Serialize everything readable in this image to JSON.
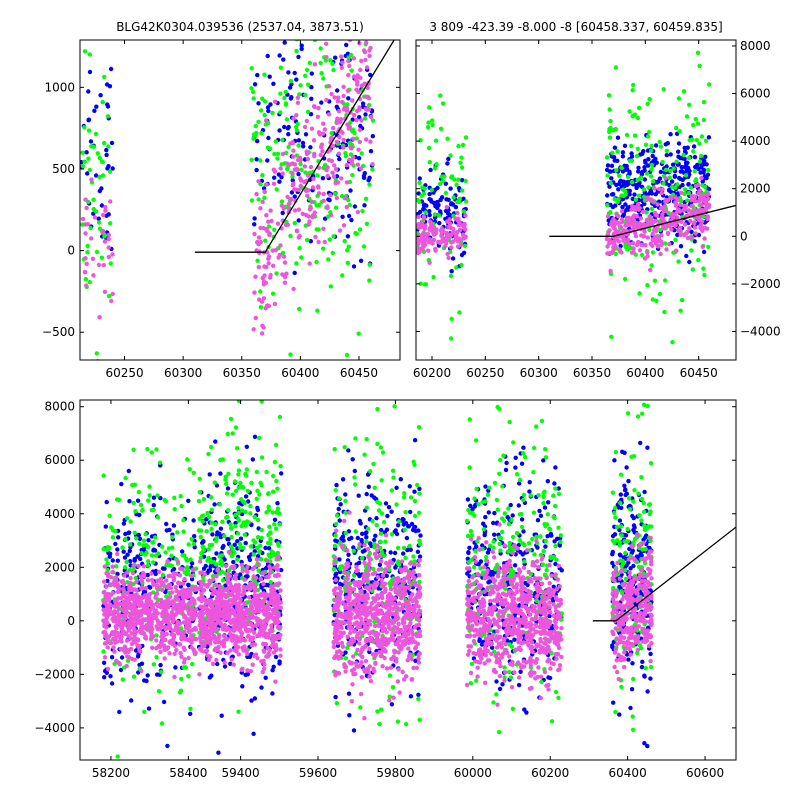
{
  "colors": {
    "blue": "#0000ff",
    "green": "#00ff00",
    "pink": "#ee55dd",
    "model_line": "#000000",
    "frame": "#000000",
    "background": "#ffffff"
  },
  "chart_data": [
    {
      "type": "scatter",
      "title": "BLG42K0304.039536 (2537.04, 3873.51)",
      "xlabel": "",
      "ylabel": "",
      "xlim": [
        60212,
        60485
      ],
      "ylim": [
        -670,
        1290
      ],
      "xticks": [
        60250,
        60300,
        60350,
        60400,
        60450
      ],
      "xtick_labels": [
        "60250",
        "60300",
        "60350",
        "60400",
        "60450"
      ],
      "yticks": [
        -500,
        0,
        500,
        1000
      ],
      "ytick_labels": [
        "−500",
        "0",
        "500",
        "1000"
      ],
      "ytick_side": "left",
      "grid": false,
      "series": [
        {
          "color": "blue",
          "clusters": [
            {
              "x": [
                60213,
                60240
              ],
              "y_mean": 650,
              "y_sd": 360,
              "n": 40
            },
            {
              "x": [
                60360,
                60462
              ],
              "y_mean": 780,
              "y_sd": 380,
              "n": 190
            }
          ]
        },
        {
          "color": "green",
          "clusters": [
            {
              "x": [
                60213,
                60240
              ],
              "y_mean": 320,
              "y_sd": 390,
              "n": 50
            },
            {
              "x": [
                60358,
                60462
              ],
              "y_mean": 520,
              "y_sd": 480,
              "n": 220
            }
          ]
        },
        {
          "color": "pink",
          "clusters": [
            {
              "x": [
                60213,
                60240
              ],
              "y_mean": -50,
              "y_sd": 230,
              "n": 35
            },
            {
              "x": [
                60360,
                60462
              ],
              "y_mean": "model",
              "y_sd": 260,
              "n": 320
            }
          ]
        }
      ],
      "model": {
        "x": [
          60310,
          60370,
          60480
        ],
        "y": [
          -10,
          -10,
          1290
        ]
      }
    },
    {
      "type": "scatter",
      "title": "3 809 -423.39 -8.000 -8 [60458.337, 60459.835]",
      "xlabel": "",
      "ylabel": "",
      "xlim": [
        60185,
        60485
      ],
      "ylim": [
        -5200,
        8250
      ],
      "xticks": [
        60200,
        60250,
        60300,
        60350,
        60400,
        60450
      ],
      "xtick_labels": [
        "60200",
        "60250",
        "60300",
        "60350",
        "60400",
        "60450"
      ],
      "yticks": [
        -4000,
        -2000,
        0,
        2000,
        4000,
        6000,
        8000
      ],
      "ytick_labels": [
        "−4000",
        "−2000",
        "0",
        "2000",
        "4000",
        "6000",
        "8000"
      ],
      "ytick_side": "right",
      "grid": false,
      "series": [
        {
          "color": "blue",
          "clusters": [
            {
              "x": [
                60186,
                60232
              ],
              "y_mean": 1100,
              "y_sd": 900,
              "n": 110
            },
            {
              "x": [
                60364,
                60460
              ],
              "y_mean": 1800,
              "y_sd": 1100,
              "n": 380
            }
          ]
        },
        {
          "color": "green",
          "clusters": [
            {
              "x": [
                60186,
                60232
              ],
              "y_mean": 1200,
              "y_sd": 2100,
              "n": 80
            },
            {
              "x": [
                60364,
                60460
              ],
              "y_mean": 2000,
              "y_sd": 2200,
              "n": 220
            }
          ]
        },
        {
          "color": "pink",
          "clusters": [
            {
              "x": [
                60186,
                60232
              ],
              "y_mean": 0,
              "y_sd": 450,
              "n": 130
            },
            {
              "x": [
                60364,
                60460
              ],
              "y_mean": "model",
              "y_sd": 600,
              "n": 330
            }
          ]
        }
      ],
      "model": {
        "x": [
          60310,
          60370,
          60485
        ],
        "y": [
          0,
          0,
          1300
        ]
      }
    },
    {
      "type": "scatter",
      "title": "",
      "xlabel": "",
      "ylabel": "",
      "xlim": [
        58120,
        60680
      ],
      "ylim": [
        -5200,
        8250
      ],
      "xticks": [
        58200,
        58400,
        59400,
        59600,
        59800,
        60000,
        60200,
        60400,
        60600
      ],
      "xtick_labels": [
        "58200",
        "58400",
        "59400",
        "59600",
        "59800",
        "60000",
        "60200",
        "60400",
        "60600"
      ],
      "yticks": [
        -4000,
        -2000,
        0,
        2000,
        4000,
        6000,
        8000
      ],
      "ytick_labels": [
        "−4000",
        "−2000",
        "0",
        "2000",
        "4000",
        "6000",
        "8000"
      ],
      "ytick_side": "left",
      "axis_break": {
        "after": 58425,
        "before": 59290
      },
      "grid": false,
      "series": [
        {
          "color": "blue",
          "clusters": [
            {
              "x": [
                58180,
                58420
              ],
              "y_mean": 1300,
              "y_sd": 1800,
              "n": 260
            },
            {
              "x": [
                59292,
                59505
              ],
              "y_mean": 1500,
              "y_sd": 1900,
              "n": 320
            },
            {
              "x": [
                59640,
                59865
              ],
              "y_mean": 1500,
              "y_sd": 2000,
              "n": 320
            },
            {
              "x": [
                59985,
                60230
              ],
              "y_mean": 1500,
              "y_sd": 2000,
              "n": 320
            },
            {
              "x": [
                60360,
                60462
              ],
              "y_mean": 1500,
              "y_sd": 2000,
              "n": 230
            }
          ]
        },
        {
          "color": "green",
          "clusters": [
            {
              "x": [
                58180,
                58420
              ],
              "y_mean": 1800,
              "y_sd": 2200,
              "n": 200
            },
            {
              "x": [
                59292,
                59505
              ],
              "y_mean": 3000,
              "y_sd": 2300,
              "n": 260
            },
            {
              "x": [
                59640,
                59865
              ],
              "y_mean": 1800,
              "y_sd": 2400,
              "n": 200
            },
            {
              "x": [
                59985,
                60230
              ],
              "y_mean": 2100,
              "y_sd": 2300,
              "n": 230
            },
            {
              "x": [
                60360,
                60462
              ],
              "y_mean": 2000,
              "y_sd": 2200,
              "n": 140
            }
          ]
        },
        {
          "color": "pink",
          "clusters": [
            {
              "x": [
                58180,
                58420
              ],
              "y_mean": 250,
              "y_sd": 800,
              "n": 700
            },
            {
              "x": [
                59292,
                59505
              ],
              "y_mean": 200,
              "y_sd": 850,
              "n": 700
            },
            {
              "x": [
                59640,
                59865
              ],
              "y_mean": 100,
              "y_sd": 1100,
              "n": 700
            },
            {
              "x": [
                59985,
                60230
              ],
              "y_mean": 100,
              "y_sd": 1100,
              "n": 700
            },
            {
              "x": [
                60360,
                60462
              ],
              "y_mean": "model",
              "y_sd": 900,
              "n": 300
            }
          ]
        }
      ],
      "model": {
        "x": [
          60310,
          60370,
          60680
        ],
        "y": [
          0,
          0,
          3500
        ]
      }
    }
  ]
}
